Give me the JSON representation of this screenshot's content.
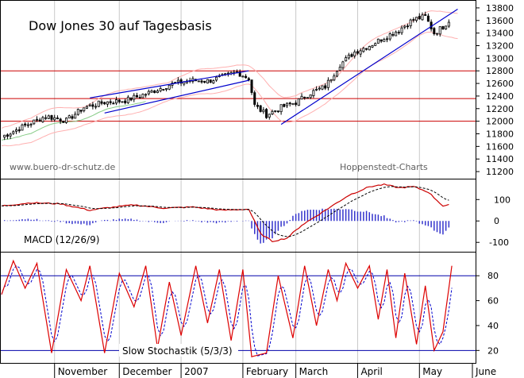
{
  "chart_data": [
    {
      "type": "candlestick",
      "panel": "price",
      "title": "Dow Jones 30 auf Tagesbasis",
      "annotations": [
        "www.buero-dr-schutz.de",
        "Hoppenstedt-Charts"
      ],
      "ylim": [
        11100,
        13900
      ],
      "yticks": [
        11200,
        11400,
        11600,
        11800,
        12000,
        12200,
        12400,
        12600,
        12800,
        13000,
        13200,
        13400,
        13600,
        13800
      ],
      "support_resistance_levels": [
        12800,
        12360,
        12000
      ],
      "close_anchors": [
        [
          0,
          11750
        ],
        [
          8,
          11930
        ],
        [
          15,
          12080
        ],
        [
          22,
          12010
        ],
        [
          28,
          12220
        ],
        [
          35,
          12300
        ],
        [
          42,
          12330
        ],
        [
          50,
          12450
        ],
        [
          57,
          12580
        ],
        [
          64,
          12650
        ],
        [
          70,
          12640
        ],
        [
          75,
          12700
        ],
        [
          80,
          12780
        ],
        [
          84,
          12680
        ],
        [
          86,
          12250
        ],
        [
          90,
          12100
        ],
        [
          95,
          12220
        ],
        [
          100,
          12300
        ],
        [
          105,
          12450
        ],
        [
          110,
          12550
        ],
        [
          115,
          12900
        ],
        [
          120,
          13100
        ],
        [
          125,
          13200
        ],
        [
          130,
          13330
        ],
        [
          135,
          13450
        ],
        [
          140,
          13620
        ],
        [
          144,
          13660
        ],
        [
          147,
          13400
        ],
        [
          150,
          13500
        ],
        [
          152,
          13600
        ]
      ],
      "trendlines": [
        {
          "name": "upper-channel",
          "from": [
            30,
            12370
          ],
          "to": [
            84,
            12800
          ]
        },
        {
          "name": "lower-channel",
          "from": [
            35,
            12130
          ],
          "to": [
            84,
            12650
          ]
        },
        {
          "name": "uptrend",
          "from": [
            95,
            11950
          ],
          "to": [
            155,
            13780
          ]
        }
      ],
      "colors": {
        "resistance": "#cc0000",
        "trend": "#0000cc",
        "band": "#ffb0b0",
        "ma": "#88cc88"
      }
    },
    {
      "type": "line",
      "panel": "macd",
      "label": "MACD (12/26/9)",
      "ylim": [
        -140,
        190
      ],
      "yticks": [
        100,
        0,
        -100
      ],
      "macd_anchors": [
        [
          0,
          70
        ],
        [
          10,
          85
        ],
        [
          20,
          80
        ],
        [
          30,
          50
        ],
        [
          35,
          60
        ],
        [
          45,
          75
        ],
        [
          55,
          60
        ],
        [
          65,
          65
        ],
        [
          75,
          50
        ],
        [
          84,
          55
        ],
        [
          88,
          -60
        ],
        [
          92,
          -95
        ],
        [
          97,
          -80
        ],
        [
          102,
          -20
        ],
        [
          110,
          50
        ],
        [
          118,
          120
        ],
        [
          125,
          160
        ],
        [
          130,
          170
        ],
        [
          135,
          155
        ],
        [
          140,
          160
        ],
        [
          145,
          135
        ],
        [
          150,
          70
        ],
        [
          152,
          75
        ]
      ],
      "colors": {
        "macd": "#cc0000",
        "signal": "#000000",
        "histogram": "#3333cc"
      }
    },
    {
      "type": "line",
      "panel": "stochastic",
      "label": "Slow Stochastik (5/3/3)",
      "ylim": [
        10,
        98
      ],
      "yticks": [
        80,
        60,
        40,
        20
      ],
      "reference_levels": [
        80,
        20
      ],
      "turning_points": [
        [
          0,
          65
        ],
        [
          4,
          92
        ],
        [
          8,
          70
        ],
        [
          12,
          90
        ],
        [
          17,
          18
        ],
        [
          22,
          85
        ],
        [
          27,
          60
        ],
        [
          30,
          88
        ],
        [
          35,
          18
        ],
        [
          40,
          82
        ],
        [
          45,
          55
        ],
        [
          49,
          88
        ],
        [
          53,
          22
        ],
        [
          57,
          75
        ],
        [
          61,
          32
        ],
        [
          66,
          88
        ],
        [
          70,
          42
        ],
        [
          74,
          85
        ],
        [
          78,
          28
        ],
        [
          82,
          85
        ],
        [
          85,
          15
        ],
        [
          90,
          18
        ],
        [
          94,
          80
        ],
        [
          99,
          30
        ],
        [
          103,
          88
        ],
        [
          107,
          40
        ],
        [
          111,
          85
        ],
        [
          114,
          60
        ],
        [
          117,
          90
        ],
        [
          121,
          70
        ],
        [
          125,
          88
        ],
        [
          128,
          45
        ],
        [
          131,
          85
        ],
        [
          134,
          30
        ],
        [
          137,
          82
        ],
        [
          141,
          25
        ],
        [
          144,
          72
        ],
        [
          147,
          20
        ],
        [
          150,
          35
        ],
        [
          153,
          88
        ]
      ],
      "colors": {
        "k": "#dd0000",
        "d": "#0000cc",
        "levels": "#0000aa"
      }
    }
  ],
  "x_axis": {
    "months": [
      "November",
      "December",
      "2007",
      "February",
      "March",
      "April",
      "May",
      "June"
    ],
    "month_start_index": [
      18,
      40,
      61,
      82,
      100,
      121,
      142,
      160
    ]
  }
}
